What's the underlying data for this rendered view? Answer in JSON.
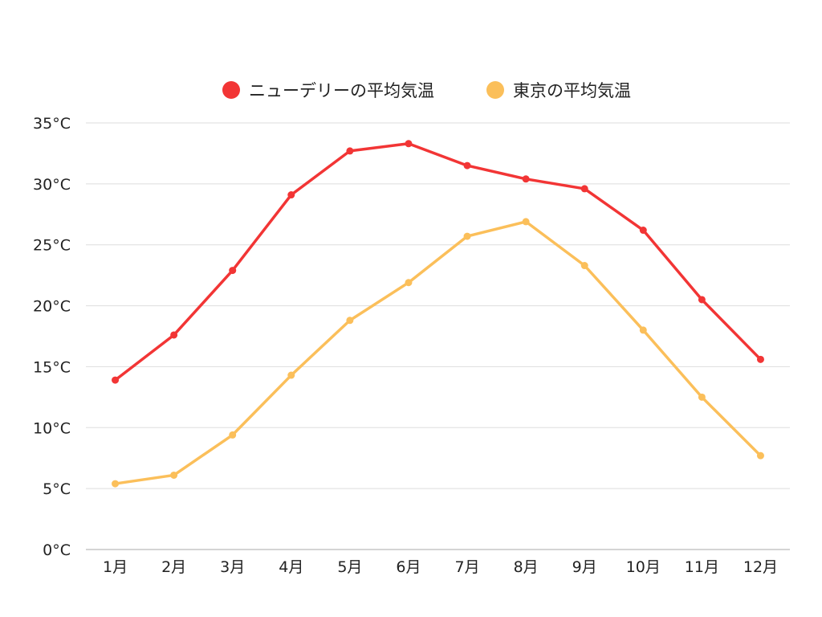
{
  "chart_data": {
    "type": "line",
    "title": "",
    "xlabel": "",
    "ylabel": "",
    "categories": [
      "1月",
      "2月",
      "3月",
      "4月",
      "5月",
      "6月",
      "7月",
      "8月",
      "9月",
      "10月",
      "11月",
      "12月"
    ],
    "ylim": [
      0,
      35
    ],
    "yticks": [
      0,
      5,
      10,
      15,
      20,
      25,
      30,
      35
    ],
    "ytick_labels": [
      "0°C",
      "5°C",
      "10°C",
      "15°C",
      "20°C",
      "25°C",
      "30°C",
      "35°C"
    ],
    "grid": true,
    "legend_position": "top-center",
    "series": [
      {
        "name": "ニューデリーの平均気温",
        "color": "#f23535",
        "values": [
          13.9,
          17.6,
          22.9,
          29.1,
          32.7,
          33.3,
          31.5,
          30.4,
          29.6,
          26.2,
          20.5,
          15.6
        ]
      },
      {
        "name": "東京の平均気温",
        "color": "#fbbf5a",
        "values": [
          5.4,
          6.1,
          9.4,
          14.3,
          18.8,
          21.9,
          25.7,
          26.9,
          23.3,
          18.0,
          12.5,
          7.7
        ]
      }
    ]
  }
}
